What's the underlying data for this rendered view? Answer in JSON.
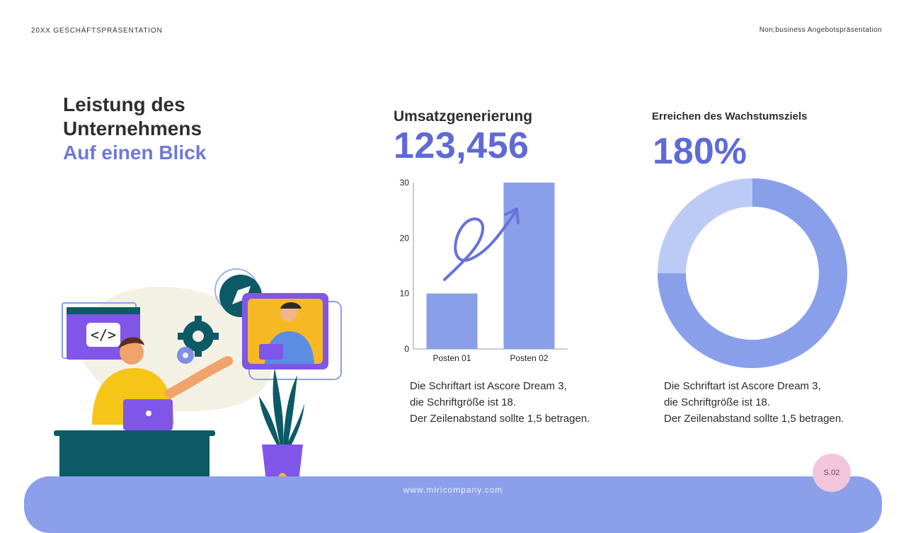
{
  "header": {
    "left": "20XX GESCHÄFTSPRÄSENTATION",
    "right": "Non;business Angebotspräsentation"
  },
  "title": {
    "line1": "Leistung des",
    "line2": "Unternehmens",
    "accent": "Auf einen Blick"
  },
  "revenue": {
    "heading": "Umsatzgenerierung",
    "value": "123,456",
    "body": [
      "Die Schriftart ist Ascore Dream 3,",
      "die Schriftgröße ist 18.",
      "Der Zeilenabstand sollte 1,5 betragen."
    ]
  },
  "growth": {
    "heading": "Erreichen des Wachstumsziels",
    "value": "180%",
    "body": [
      "Die Schriftart ist Ascore Dream 3,",
      "die Schriftgröße ist 18.",
      "Der Zeilenabstand sollte 1,5 betragen."
    ]
  },
  "chart_data": [
    {
      "type": "bar",
      "categories": [
        "Posten 01",
        "Posten 02"
      ],
      "values": [
        10,
        30
      ],
      "ylim": [
        0,
        30
      ],
      "yticks": [
        0,
        10,
        20,
        30
      ],
      "title": "",
      "xlabel": "",
      "ylabel": "",
      "color": "#8a9fea"
    },
    {
      "type": "pie",
      "donut": true,
      "values": [
        75,
        25
      ],
      "colors": [
        "#8a9fea",
        "#bccbf6"
      ]
    }
  ],
  "footer": {
    "url": "www.miricompany.com",
    "page": "S.02"
  },
  "colors": {
    "accent": "#6f78d9",
    "footer": "#8b9fea",
    "badge": "#f3c5dd"
  },
  "illustration": {
    "icons": [
      "code-window-icon",
      "gear-icon",
      "pen-nib-icon"
    ]
  }
}
